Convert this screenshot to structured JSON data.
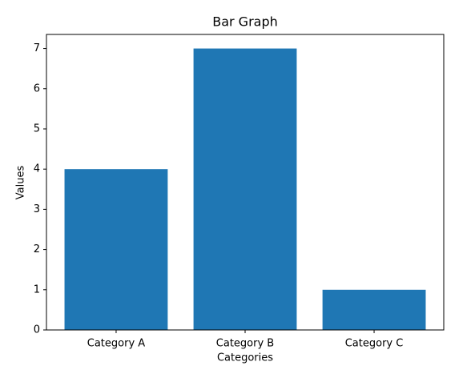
{
  "chart_data": {
    "type": "bar",
    "title": "Bar Graph",
    "x_label": "Categories",
    "y_label": "Values",
    "categories": [
      "Category A",
      "Category B",
      "Category C"
    ],
    "values": [
      4,
      7,
      1
    ],
    "color": "#1f77b4",
    "ylim": [
      0,
      7.35
    ],
    "yticks": [
      0,
      1,
      2,
      3,
      4,
      5,
      6,
      7
    ],
    "grid": false
  }
}
